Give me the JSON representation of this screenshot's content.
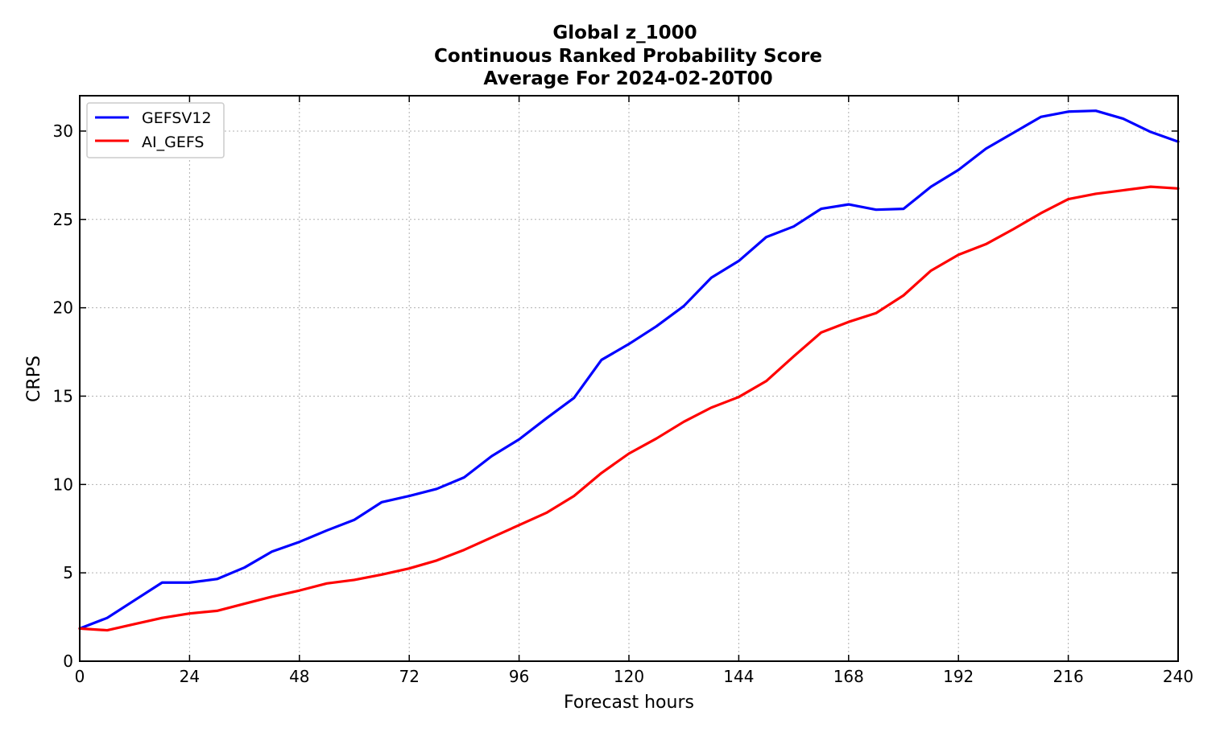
{
  "chart_data": {
    "type": "line",
    "title": [
      "Global z_1000",
      "Continuous Ranked Probability Score",
      "Average For 2024-02-20T00"
    ],
    "xlabel": "Forecast hours",
    "ylabel": "CRPS",
    "xlim": [
      0,
      240
    ],
    "ylim": [
      0,
      32
    ],
    "xticks": [
      0,
      24,
      48,
      72,
      96,
      120,
      144,
      168,
      192,
      216,
      240
    ],
    "yticks": [
      0,
      5,
      10,
      15,
      20,
      25,
      30
    ],
    "grid": true,
    "legend_position": "upper-left",
    "x": [
      0,
      6,
      12,
      18,
      24,
      30,
      36,
      42,
      48,
      54,
      60,
      66,
      72,
      78,
      84,
      90,
      96,
      102,
      108,
      114,
      120,
      126,
      132,
      138,
      144,
      150,
      156,
      162,
      168,
      174,
      180,
      186,
      192,
      198,
      204,
      210,
      216,
      222,
      228,
      234,
      240
    ],
    "series": [
      {
        "name": "GEFSV12",
        "color": "#0000ff",
        "values": [
          1.85,
          2.45,
          3.45,
          4.45,
          4.45,
          4.65,
          5.3,
          6.2,
          6.75,
          7.4,
          8.0,
          9.0,
          9.35,
          9.75,
          10.4,
          11.6,
          12.55,
          13.75,
          14.9,
          17.05,
          17.95,
          18.95,
          20.1,
          21.7,
          22.65,
          24.0,
          24.6,
          25.6,
          25.85,
          25.55,
          25.6,
          26.85,
          27.8,
          29.0,
          29.9,
          30.8,
          31.1,
          31.15,
          30.7,
          29.95,
          29.4
        ]
      },
      {
        "name": "AI_GEFS",
        "color": "#ff0000",
        "values": [
          1.85,
          1.75,
          2.1,
          2.45,
          2.7,
          2.85,
          3.25,
          3.65,
          4.0,
          4.4,
          4.6,
          4.9,
          5.25,
          5.7,
          6.3,
          7.0,
          7.7,
          8.4,
          9.35,
          10.65,
          11.75,
          12.6,
          13.55,
          14.35,
          14.95,
          15.85,
          17.25,
          18.6,
          19.2,
          19.7,
          20.7,
          22.1,
          23.0,
          23.6,
          24.45,
          25.35,
          26.15,
          26.45,
          26.65,
          26.85,
          26.75
        ]
      }
    ]
  }
}
